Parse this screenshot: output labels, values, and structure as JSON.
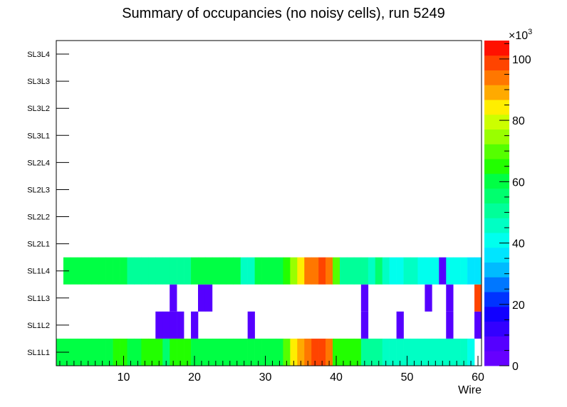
{
  "chart_data": {
    "type": "heatmap",
    "title": "Summary of occupancies (no noisy cells), run 5249",
    "xlabel": "Wire",
    "xlim": [
      0.5,
      60.5
    ],
    "x_ticks": [
      10,
      20,
      30,
      40,
      50,
      60
    ],
    "ylabels": [
      "SL1L1",
      "SL1L2",
      "SL1L3",
      "SL1L4",
      "SL2L1",
      "SL2L2",
      "SL2L3",
      "SL2L4",
      "SL3L1",
      "SL3L2",
      "SL3L3",
      "SL3L4"
    ],
    "z_range": [
      0,
      106000
    ],
    "z_exponent_label": "×10",
    "z_exponent_power": "3",
    "z_ticks": [
      0,
      20,
      40,
      60,
      80,
      100
    ],
    "colorbar_colors": [
      "#6600ff",
      "#5500ff",
      "#3300ff",
      "#1100ff",
      "#0033ff",
      "#0077ff",
      "#00bbff",
      "#00e5ff",
      "#00ffee",
      "#00ffc4",
      "#00ff99",
      "#00ff6e",
      "#00ff44",
      "#22ff00",
      "#55ff00",
      "#99ff00",
      "#ccff00",
      "#ffee00",
      "#ffaa00",
      "#ff7700",
      "#ff4400",
      "#ff1100"
    ],
    "rows": [
      {
        "name": "SL1L1",
        "values": [
          58000,
          58000,
          58000,
          58000,
          58000,
          58000,
          58000,
          58000,
          64000,
          64000,
          61000,
          58000,
          64000,
          64000,
          64000,
          54000,
          64000,
          64000,
          64000,
          61000,
          61000,
          61000,
          61000,
          61000,
          61000,
          58000,
          58000,
          61000,
          61000,
          61000,
          61000,
          61000,
          71000,
          82000,
          89000,
          96000,
          101000,
          101000,
          92000,
          64000,
          64000,
          64000,
          64000,
          51000,
          51000,
          51000,
          48000,
          48000,
          48000,
          48000,
          48000,
          48000,
          48000,
          48000,
          48000,
          48000,
          48000,
          48000,
          42000,
          0
        ]
      },
      {
        "name": "SL1L2",
        "values": [
          0,
          0,
          0,
          0,
          0,
          0,
          0,
          0,
          0,
          0,
          0,
          0,
          0,
          0,
          5000,
          5000,
          5000,
          5000,
          0,
          5000,
          0,
          0,
          0,
          0,
          0,
          0,
          0,
          5000,
          0,
          0,
          0,
          0,
          0,
          0,
          0,
          0,
          0,
          0,
          0,
          0,
          0,
          0,
          0,
          5000,
          0,
          0,
          0,
          0,
          5000,
          0,
          0,
          0,
          0,
          0,
          0,
          5000,
          0,
          0,
          0,
          5000
        ]
      },
      {
        "name": "SL1L3",
        "values": [
          0,
          0,
          0,
          0,
          0,
          0,
          0,
          0,
          0,
          0,
          0,
          0,
          0,
          0,
          0,
          0,
          5000,
          0,
          0,
          0,
          5000,
          5000,
          0,
          0,
          0,
          0,
          0,
          0,
          0,
          0,
          0,
          0,
          0,
          0,
          0,
          0,
          0,
          0,
          0,
          0,
          0,
          0,
          0,
          5000,
          0,
          0,
          0,
          0,
          0,
          0,
          0,
          0,
          5000,
          0,
          0,
          5000,
          0,
          0,
          0,
          99000
        ]
      },
      {
        "name": "SL1L4",
        "values": [
          0,
          58000,
          58000,
          58000,
          58000,
          58000,
          58000,
          58000,
          58000,
          61000,
          51000,
          51000,
          51000,
          51000,
          51000,
          51000,
          51000,
          51000,
          51000,
          61000,
          61000,
          61000,
          61000,
          61000,
          61000,
          61000,
          48000,
          48000,
          61000,
          61000,
          61000,
          61000,
          64000,
          76000,
          82000,
          92000,
          96000,
          101000,
          92000,
          71000,
          51000,
          51000,
          51000,
          51000,
          48000,
          54000,
          48000,
          42000,
          42000,
          48000,
          48000,
          42000,
          42000,
          42000,
          5000,
          42000,
          42000,
          42000,
          38000,
          38000
        ]
      }
    ]
  }
}
